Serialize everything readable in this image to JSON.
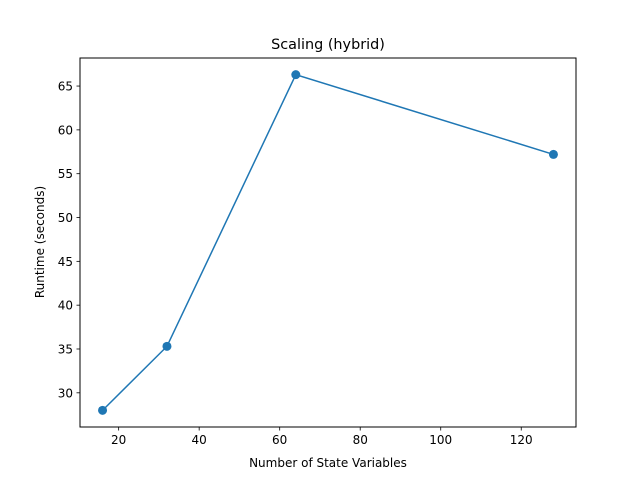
{
  "chart_data": {
    "type": "line",
    "title": "Scaling (hybrid)",
    "xlabel": "Number of State Variables",
    "ylabel": "Runtime (seconds)",
    "x": [
      16,
      32,
      64,
      128
    ],
    "series": [
      {
        "name": "Runtime",
        "values": [
          28.0,
          35.3,
          66.3,
          57.2
        ],
        "color": "#1f77b4",
        "marker": "circle"
      }
    ],
    "xlim": [
      10.4,
      133.6
    ],
    "ylim": [
      26.1,
      68.2
    ],
    "xticks": [
      20,
      40,
      60,
      80,
      100,
      120
    ],
    "yticks": [
      30,
      35,
      40,
      45,
      50,
      55,
      60,
      65
    ],
    "grid": false,
    "legend": null
  }
}
